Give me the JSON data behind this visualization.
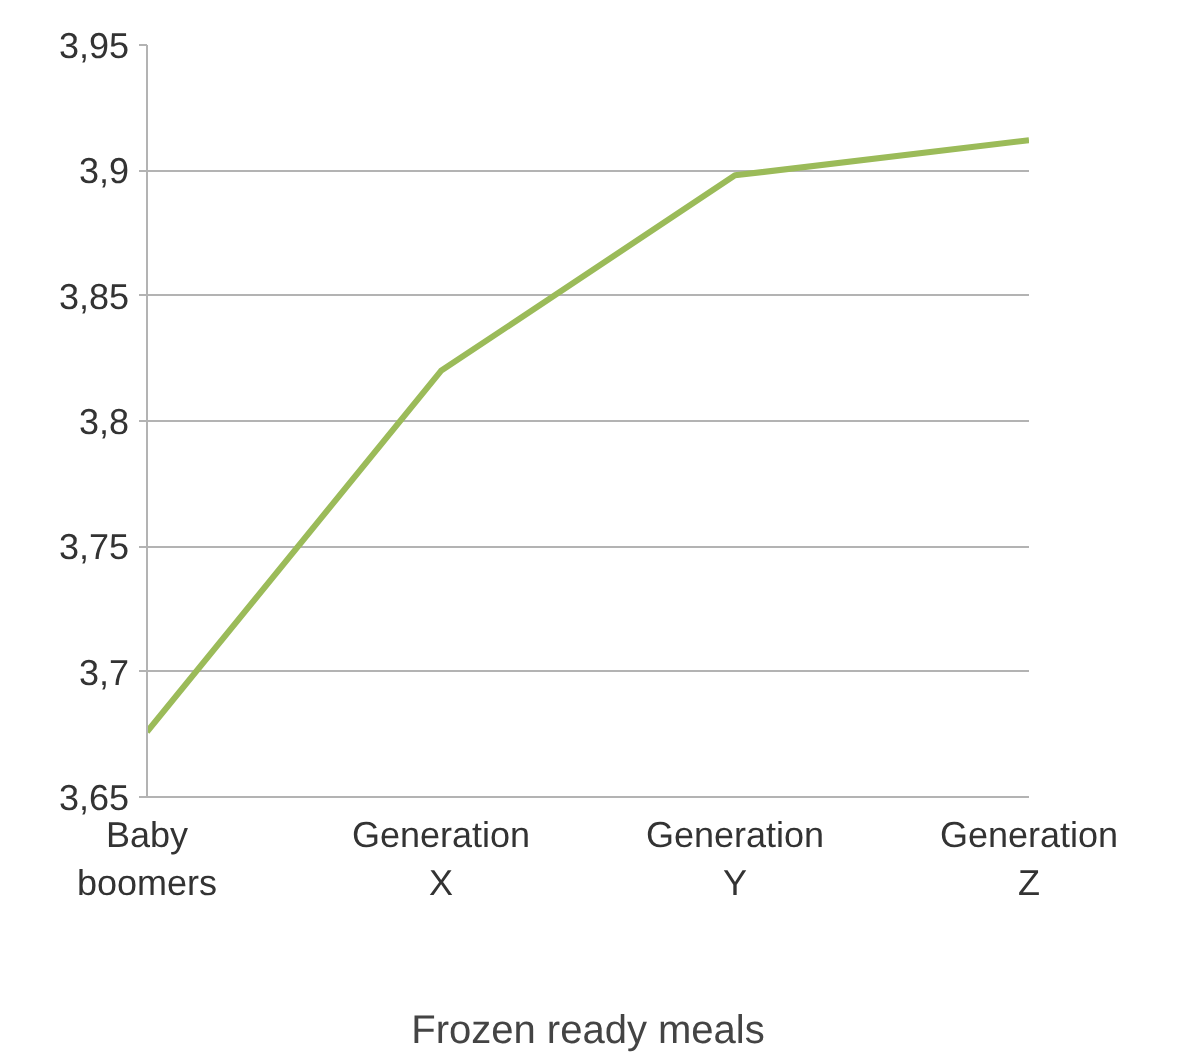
{
  "chart_data": {
    "type": "line",
    "xlabel": "Frozen ready meals",
    "categories": [
      "Baby boomers",
      "Generation X",
      "Generation Y",
      "Generation Z"
    ],
    "series": [
      {
        "color": "#9bbb59",
        "values": [
          3.676,
          3.82,
          3.898,
          3.912
        ]
      }
    ],
    "ylim": [
      3.65,
      3.95
    ],
    "yticks": [
      {
        "value": 3.65,
        "label": "3,65"
      },
      {
        "value": 3.7,
        "label": "3,7"
      },
      {
        "value": 3.75,
        "label": "3,75"
      },
      {
        "value": 3.8,
        "label": "3,8"
      },
      {
        "value": 3.85,
        "label": "3,85"
      },
      {
        "value": 3.9,
        "label": "3,9"
      },
      {
        "value": 3.95,
        "label": "3,95"
      }
    ],
    "grid": "y",
    "marker": "none",
    "line_style": "solid"
  }
}
